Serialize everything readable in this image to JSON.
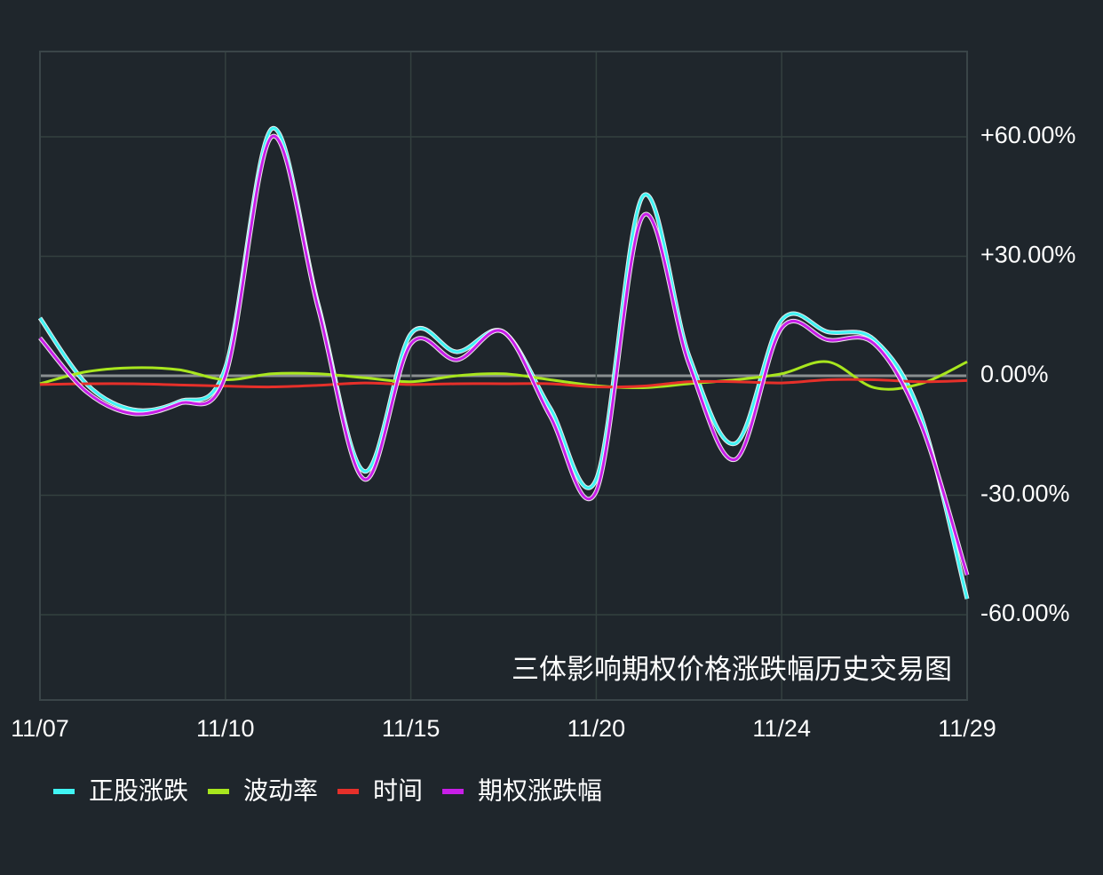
{
  "chart_data": {
    "type": "line",
    "annotation": "三体影响期权价格涨跌幅历史交易图",
    "categories": [
      "11/07",
      null,
      null,
      null,
      "11/10",
      null,
      null,
      null,
      "11/15",
      null,
      null,
      null,
      "11/20",
      null,
      null,
      null,
      "11/24",
      null,
      null,
      null,
      "11/29"
    ],
    "series": [
      {
        "name": "正股涨跌",
        "color": "#40f4f4",
        "values": [
          14.5,
          -2,
          -8.5,
          -6.5,
          2,
          62,
          18,
          -24,
          10.5,
          6,
          11,
          -8,
          -26,
          45,
          5,
          -17,
          14,
          11,
          9,
          -10,
          -56
        ]
      },
      {
        "name": "波动率",
        "color": "#a8e61e",
        "values": [
          -2,
          1,
          2,
          1.5,
          -1,
          0.5,
          0.5,
          -0.5,
          -1.5,
          0,
          0.5,
          -1,
          -2.5,
          -3,
          -2,
          -1,
          0.5,
          3.5,
          -3,
          -2,
          3.5
        ]
      },
      {
        "name": "时间",
        "color": "#e6302a",
        "values": [
          -2.2,
          -2,
          -2,
          -2.3,
          -2.6,
          -2.8,
          -2.4,
          -1.8,
          -2.2,
          -2,
          -2,
          -2,
          -2.8,
          -2.6,
          -1.5,
          -1.5,
          -1.8,
          -1,
          -1,
          -1.5,
          -1.2
        ]
      },
      {
        "name": "期权涨跌幅",
        "color": "#c81ee8",
        "values": [
          9.5,
          -4,
          -9.5,
          -7,
          0,
          60,
          17,
          -26,
          8,
          4,
          11,
          -10,
          -29,
          40,
          3,
          -21,
          12,
          9,
          8,
          -12,
          -50
        ]
      }
    ],
    "ylim": [
      -81.4,
      81.4
    ],
    "yticks": [
      {
        "value": 60,
        "label": "+60.00%"
      },
      {
        "value": 30,
        "label": "+30.00%"
      },
      {
        "value": 0,
        "label": "0.00%"
      },
      {
        "value": -30,
        "label": "-30.00%"
      },
      {
        "value": -60,
        "label": "-60.00%"
      }
    ],
    "grid": true,
    "legend": "bottom"
  }
}
